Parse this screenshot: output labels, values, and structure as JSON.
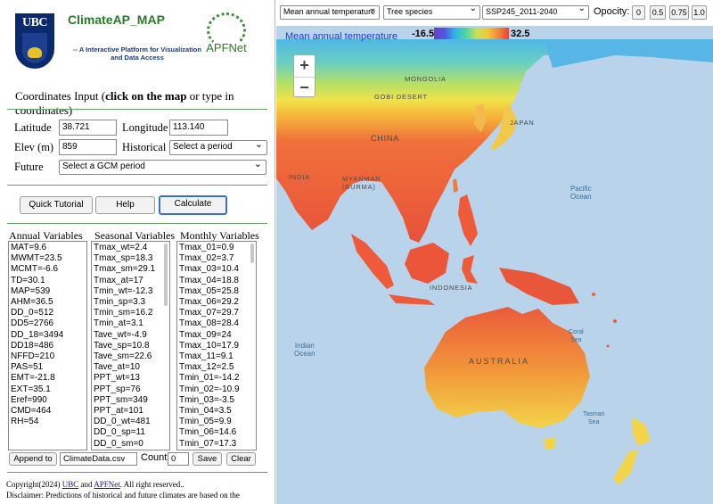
{
  "header": {
    "org_logo_text": "UBC",
    "app_title": "ClimateAP_MAP",
    "app_subtitle": "-- A Interactive Platform for Visualization and Data Access",
    "partner_logo_text": "APFNet"
  },
  "coords": {
    "title_prefix": "Coordinates Input (",
    "title_bold": "click on the map",
    "title_suffix": " or type in coordinates)",
    "latitude_label": "Latitude",
    "latitude_value": "38.721",
    "longitude_label": "Longitude",
    "longitude_value": "113.140",
    "elev_label": "Elev (m)",
    "elev_value": "859",
    "historical_label": "Historical",
    "historical_selected": "Select a period",
    "future_label": "Future",
    "future_selected": "Select a GCM period"
  },
  "buttons": {
    "tutorial": "Quick Tutorial",
    "help": "Help",
    "calculate": "Calculate"
  },
  "variables": {
    "annual_title": "Annual Variables",
    "seasonal_title": "Seasonal Variables",
    "monthly_title": "Monthly Variables",
    "annual": [
      "MAT=9.6",
      "MWMT=23.5",
      "MCMT=-6.6",
      "TD=30.1",
      "MAP=539",
      "AHM=36.5",
      "DD_0=512",
      "DD5=2766",
      "DD_18=3494",
      "DD18=486",
      "NFFD=210",
      "PAS=51",
      "EMT=-21.8",
      "EXT=35.1",
      "Eref=990",
      "CMD=464",
      "RH=54"
    ],
    "seasonal": [
      "Tmax_wt=2.4",
      "Tmax_sp=18.3",
      "Tmax_sm=29.1",
      "Tmax_at=17",
      "Tmin_wt=-12.3",
      "Tmin_sp=3.3",
      "Tmin_sm=16.2",
      "Tmin_at=3.1",
      "Tave_wt=-4.9",
      "Tave_sp=10.8",
      "Tave_sm=22.6",
      "Tave_at=10",
      "PPT_wt=13",
      "PPT_sp=76",
      "PPT_sm=349",
      "PPT_at=101",
      "DD_0_wt=481",
      "DD_0_sp=11",
      "DD_0_sm=0"
    ],
    "monthly": [
      "Tmax_01=0.9",
      "Tmax_02=3.7",
      "Tmax_03=10.4",
      "Tmax_04=18.8",
      "Tmax_05=25.8",
      "Tmax_06=29.2",
      "Tmax_07=29.7",
      "Tmax_08=28.4",
      "Tmax_09=24",
      "Tmax_10=17.9",
      "Tmax_11=9.1",
      "Tmax_12=2.5",
      "Tmin_01=-14.2",
      "Tmin_02=-10.9",
      "Tmin_03=-3.5",
      "Tmin_04=3.5",
      "Tmin_05=9.9",
      "Tmin_06=14.6",
      "Tmin_07=17.3"
    ]
  },
  "export": {
    "append_label": "Append to",
    "filename_value": "ClimateData.csv",
    "count_label": "Count",
    "count_value": "0",
    "save_label": "Save",
    "clear_label": "Clear"
  },
  "footer": {
    "copyright_prefix": "Copyright(2024)",
    "link_ubc": "UBC",
    "and_text": "and",
    "link_apfnet": "APFNet",
    "rights": ". All right reserved..",
    "disclaimer": "Disclaimer: Predictions of historical and future climates are based on the"
  },
  "map_controls": {
    "variable_selected": "Mean annual temperature",
    "species_selected": "Tree species",
    "scenario_selected": "SSP245_2011-2040",
    "opacity_label": "Opocity:",
    "opacity_options": [
      "0",
      "0.5",
      "0.75",
      "1.0"
    ]
  },
  "legend": {
    "title": "Mean annual temperature",
    "min": "-16.5",
    "max": "32.5",
    "colors": [
      "#6f3cc8",
      "#2fb7e8",
      "#c8e05a",
      "#f5c63a",
      "#e8423a"
    ]
  },
  "zoom": {
    "in": "+",
    "out": "−"
  },
  "map_labels": {
    "mongolia": "MONGOLIA",
    "gobi": "GOBI DESERT",
    "china": "CHINA",
    "japan": "JAPAN",
    "india": "INDIA",
    "myanmar": "MYANMAR (BURMA)",
    "indonesia": "INDONESIA",
    "australia": "AUSTRALIA",
    "pacific_ocean": "Pacific\nOcean",
    "indian_ocean": "Indian\nOcean",
    "coral_sea": "Coral\nSea",
    "tasman_sea": "Tasman\nSea"
  }
}
